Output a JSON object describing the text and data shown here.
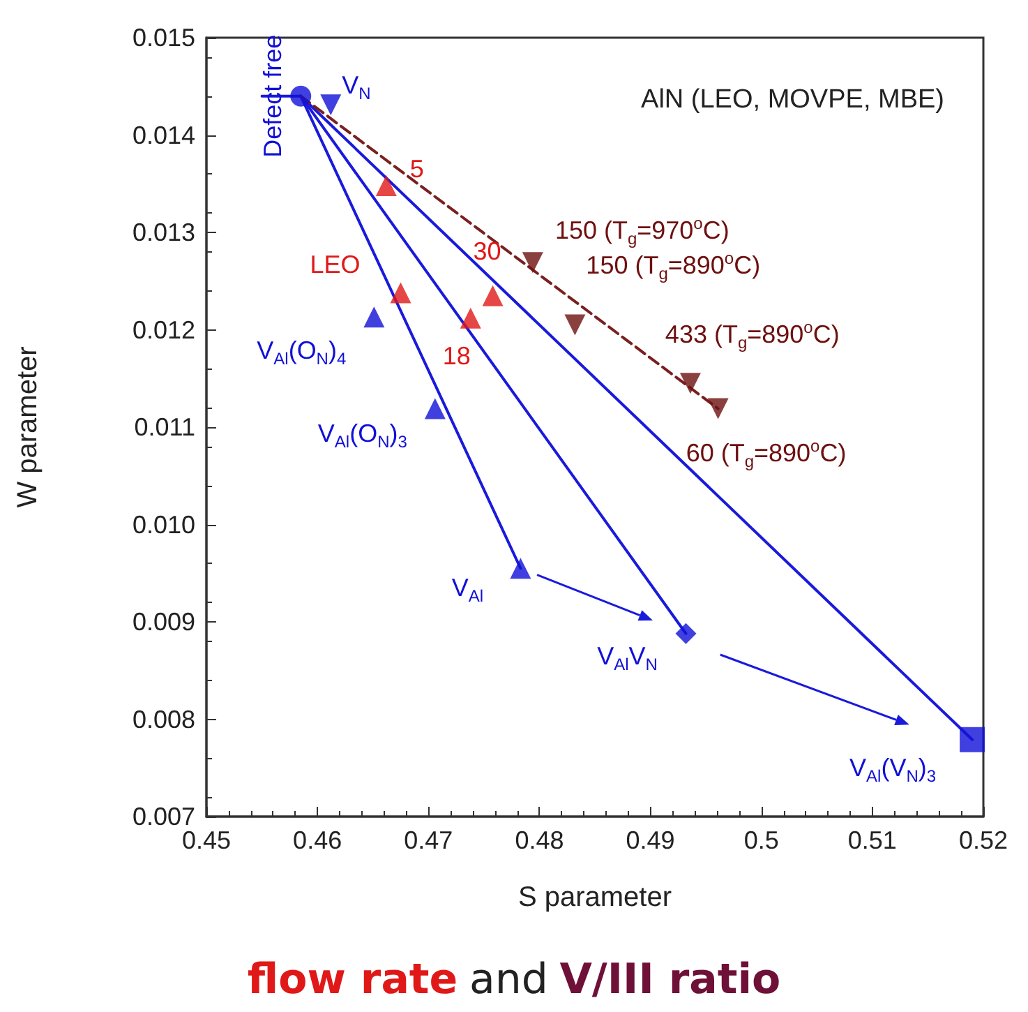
{
  "chart_data": {
    "type": "scatter",
    "xlabel": "S parameter",
    "ylabel": "W parameter",
    "xlim": [
      0.45,
      0.52
    ],
    "xticks": [
      0.45,
      0.46,
      0.47,
      0.48,
      0.49,
      0.5,
      0.51,
      0.52
    ],
    "ylim": [
      0.007,
      0.015
    ],
    "yticks": [
      0.007,
      0.008,
      0.009,
      {
        "value": 0.01,
        "label": "0.010"
      },
      0.011,
      0.012,
      0.013,
      0.014,
      0.015
    ],
    "grid": false,
    "annotations": [
      "AlN (LEO, MOVPE, MBE)",
      "flow rate",
      "and",
      "V/III ratio",
      {
        "text": "Defect free",
        "x": 0.4585,
        "y": 0.0144
      },
      {
        "text": "V$_{N}$",
        "x": 0.4612,
        "y": 0.01431
      },
      {
        "text": "V$_{Al}$(O$_{N}$)$_{4}$",
        "x": 0.4651,
        "y": 0.01213
      },
      {
        "text": "V$_{Al}$(O$_{N}$)$_{3}$",
        "x": 0.4706,
        "y": 0.01119
      },
      {
        "text": "V$_{Al}$",
        "x": 0.4783,
        "y": 0.00955
      },
      {
        "text": "V$_{Al}$V$_{N}$",
        "x": 0.4932,
        "y": 0.00888
      },
      {
        "text": "V$_{Al}$(V$_{N}$)$_{3}$",
        "x": 0.519,
        "y": 0.00779
      },
      {
        "text": "5",
        "x": 0.4662,
        "y": 0.01348
      },
      {
        "text": "LEO",
        "x": 0.4675,
        "y": 0.01238
      },
      {
        "text": "18",
        "x": 0.4738,
        "y": 0.01212
      },
      {
        "text": "30",
        "x": 0.4758,
        "y": 0.01235
      },
      {
        "text": "150 (T$_{g}$=970$^{o}$C)",
        "x": 0.4794,
        "y": 0.01269
      },
      {
        "text": "150 (T$_{g}$=890$^{o}$C)",
        "x": 0.4832,
        "y": 0.01205
      },
      {
        "text": "433 (T$_{g}$=890$^{o}$C)",
        "x": 0.4936,
        "y": 0.01145
      },
      {
        "text": "60 (T$_{g}$=890$^{o}$C)",
        "x": 0.4961,
        "y": 0.01119
      }
    ],
    "series": [
      {
        "type": "line",
        "color": "#1a1adc",
        "marker": "none",
        "line_style": "solid",
        "x": [
          0.455,
          0.4585
        ],
        "values": [
          0.0144,
          0.0144
        ]
      },
      {
        "type": "line",
        "color": "#1a1adc",
        "marker": "none",
        "line_style": "solid",
        "x": [
          0.4585,
          0.4783
        ],
        "values": [
          0.0144,
          0.00955
        ]
      },
      {
        "type": "line",
        "color": "#1a1adc",
        "marker": "none",
        "line_style": "solid",
        "x": [
          0.4585,
          0.4932
        ],
        "values": [
          0.0144,
          0.00888
        ]
      },
      {
        "type": "line",
        "color": "#1a1adc",
        "marker": "none",
        "line_style": "solid",
        "x": [
          0.4585,
          0.519
        ],
        "values": [
          0.0144,
          0.00779
        ]
      },
      {
        "type": "line",
        "color": "#7a1f1f",
        "marker": "none",
        "line_style": "dashed",
        "x": [
          0.4585,
          0.4961
        ],
        "values": [
          0.0144,
          0.01119
        ]
      },
      {
        "color": "#1010d8",
        "marker": "circle",
        "x": [
          0.4585
        ],
        "values": [
          0.0144
        ]
      },
      {
        "color": "#1010d8",
        "marker": "triangle",
        "x": [
          0.4612
        ],
        "values": [
          0.01431
        ]
      },
      {
        "color": "#1010d8",
        "marker": "triangle",
        "x": [
          0.4651,
          0.4706,
          0.4783
        ],
        "values": [
          0.01213,
          0.01119,
          0.00955
        ]
      },
      {
        "color": "#1010d8",
        "marker": "diamond",
        "x": [
          0.4932
        ],
        "values": [
          0.00888
        ]
      },
      {
        "color": "#1010d8",
        "marker": "square",
        "x": [
          0.519
        ],
        "values": [
          0.00779
        ]
      },
      {
        "color": "#e01818",
        "marker": "triangle",
        "x": [
          0.4662,
          0.4675,
          0.4738,
          0.4758
        ],
        "values": [
          0.01348,
          0.01238,
          0.01212,
          0.01235
        ]
      },
      {
        "color": "#6e1010",
        "marker": "triangle",
        "x": [
          0.4794,
          0.4832,
          0.4936,
          0.4961
        ],
        "values": [
          0.01269,
          0.01205,
          0.01145,
          0.01119
        ]
      }
    ]
  }
}
